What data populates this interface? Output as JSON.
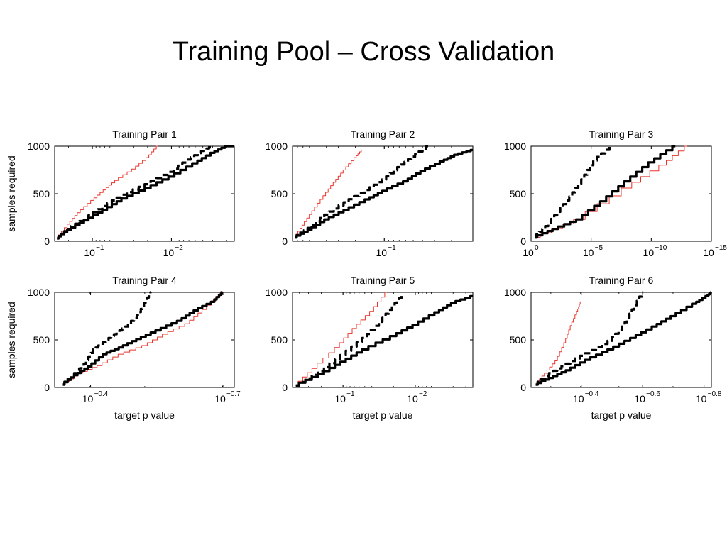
{
  "slide": {
    "title": "Training Pool – Cross Validation"
  },
  "colors": {
    "black_series": "#000000",
    "red_series": "#e8342a",
    "axes": "#000000"
  },
  "chart_data": [
    {
      "type": "line",
      "title": "Training Pair 1",
      "ylabel": "samples required",
      "xlabel": "",
      "x_scale": "log (decreasing p value to the right)",
      "ylim": [
        0,
        1000
      ],
      "yticks": [
        "0",
        "500",
        "1000"
      ],
      "xticks": [
        {
          "base": "10",
          "exp": "−1",
          "value": 0.1
        },
        {
          "base": "10",
          "exp": "−2",
          "value": 0.01
        }
      ],
      "xlim": [
        0.3,
        0.0016
      ],
      "series": [
        {
          "style": "solid-thick",
          "color": "#000000",
          "x": [
            0.28,
            0.2,
            0.12,
            0.07,
            0.04,
            0.02,
            0.01,
            0.005,
            0.003,
            0.002,
            0.0016
          ],
          "y": [
            30,
            120,
            220,
            330,
            450,
            560,
            680,
            820,
            930,
            1000,
            1000
          ]
        },
        {
          "style": "dashed-thick",
          "color": "#000000",
          "x": [
            0.28,
            0.2,
            0.12,
            0.07,
            0.04,
            0.02,
            0.01,
            0.006,
            0.004,
            0.003
          ],
          "y": [
            30,
            130,
            240,
            370,
            490,
            600,
            730,
            860,
            950,
            1000
          ]
        },
        {
          "style": "solid-thin",
          "color": "#e8342a",
          "x": [
            0.28,
            0.2,
            0.15,
            0.1,
            0.07,
            0.05,
            0.03,
            0.02,
            0.015
          ],
          "y": [
            30,
            180,
            300,
            430,
            540,
            640,
            760,
            880,
            1000
          ]
        }
      ]
    },
    {
      "type": "line",
      "title": "Training Pair 2",
      "ylabel": "",
      "xlabel": "",
      "x_scale": "log (decreasing p value to the right)",
      "ylim": [
        0,
        1000
      ],
      "yticks": [
        "0",
        "500",
        "1000"
      ],
      "xticks": [
        {
          "base": "10",
          "exp": "−1",
          "value": 0.1
        }
      ],
      "xlim": [
        0.9,
        0.012
      ],
      "series": [
        {
          "style": "solid-thick",
          "color": "#000000",
          "x": [
            0.85,
            0.6,
            0.4,
            0.25,
            0.15,
            0.1,
            0.06,
            0.04,
            0.025,
            0.018,
            0.012
          ],
          "y": [
            40,
            120,
            230,
            330,
            440,
            530,
            630,
            740,
            840,
            910,
            960
          ]
        },
        {
          "style": "dashed-thick",
          "color": "#000000",
          "x": [
            0.85,
            0.6,
            0.4,
            0.25,
            0.15,
            0.1,
            0.07,
            0.05,
            0.035
          ],
          "y": [
            40,
            140,
            280,
            410,
            540,
            650,
            780,
            890,
            1000
          ]
        },
        {
          "style": "solid-thin",
          "color": "#e8342a",
          "x": [
            0.85,
            0.7,
            0.55,
            0.42,
            0.33,
            0.26,
            0.2,
            0.17
          ],
          "y": [
            40,
            170,
            320,
            480,
            620,
            750,
            880,
            960
          ]
        }
      ]
    },
    {
      "type": "line",
      "title": "Training Pair 3",
      "ylabel": "",
      "xlabel": "",
      "x_scale": "log (decreasing p value to the right)",
      "ylim": [
        0,
        1000
      ],
      "yticks": [
        "0",
        "500",
        "1000"
      ],
      "xticks": [
        {
          "base": "10",
          "exp": "0",
          "value": 1
        },
        {
          "base": "10",
          "exp": "−5",
          "value": 1e-05
        },
        {
          "base": "10",
          "exp": "−10",
          "value": 1e-10
        },
        {
          "base": "10",
          "exp": "−15",
          "value": 1e-15
        }
      ],
      "xlim": [
        1,
        1e-15
      ],
      "series": [
        {
          "style": "solid-thick",
          "color": "#000000",
          "x": [
            0.5,
            0.01,
            0.0001,
            1e-06,
            1e-08,
            1e-10,
            1e-12
          ],
          "y": [
            40,
            130,
            230,
            420,
            630,
            830,
            1000
          ]
        },
        {
          "style": "dashed-thick",
          "color": "#000000",
          "x": [
            0.5,
            0.05,
            0.005,
            0.0005,
            5e-05,
            5e-06,
            2e-07
          ],
          "y": [
            40,
            160,
            310,
            470,
            650,
            850,
            1000
          ]
        },
        {
          "style": "solid-thin",
          "color": "#e8342a",
          "x": [
            0.5,
            0.0001,
            1e-08,
            1e-11,
            1e-13
          ],
          "y": [
            40,
            230,
            560,
            800,
            1000
          ]
        }
      ]
    },
    {
      "type": "line",
      "title": "Training Pair 4",
      "ylabel": "samples required",
      "xlabel": "target p value",
      "x_scale": "log (decreasing p value to the right)",
      "ylim": [
        0,
        1000
      ],
      "yticks": [
        "0",
        "500",
        "1000"
      ],
      "xticks": [
        {
          "base": "10",
          "exp": "−0.4",
          "value": 0.398
        },
        {
          "base": "10",
          "exp": "−0.7",
          "value": 0.1995
        }
      ],
      "xlim": [
        0.48,
        0.188
      ],
      "series": [
        {
          "style": "solid-thick",
          "color": "#000000",
          "x": [
            0.46,
            0.43,
            0.4,
            0.37,
            0.34,
            0.31,
            0.28,
            0.25,
            0.23,
            0.21,
            0.2
          ],
          "y": [
            30,
            130,
            220,
            350,
            420,
            510,
            600,
            700,
            810,
            900,
            1000
          ]
        },
        {
          "style": "dashed-thick",
          "color": "#000000",
          "x": [
            0.46,
            0.43,
            0.41,
            0.39,
            0.37,
            0.35,
            0.33,
            0.31,
            0.3,
            0.29
          ],
          "y": [
            30,
            150,
            250,
            400,
            480,
            560,
            640,
            760,
            890,
            1000
          ]
        },
        {
          "style": "solid-thin",
          "color": "#e8342a",
          "x": [
            0.46,
            0.42,
            0.38,
            0.34,
            0.3,
            0.27,
            0.24,
            0.22,
            0.2
          ],
          "y": [
            30,
            150,
            230,
            350,
            440,
            560,
            670,
            820,
            1000
          ]
        }
      ]
    },
    {
      "type": "line",
      "title": "Training Pair 5",
      "ylabel": "",
      "xlabel": "target p value",
      "x_scale": "log (decreasing p value to the right)",
      "ylim": [
        0,
        1000
      ],
      "yticks": [
        "0",
        "500",
        "1000"
      ],
      "xticks": [
        {
          "base": "10",
          "exp": "−1",
          "value": 0.1
        },
        {
          "base": "10",
          "exp": "−2",
          "value": 0.01
        }
      ],
      "xlim": [
        0.5,
        0.0016
      ],
      "series": [
        {
          "style": "solid-thick",
          "color": "#000000",
          "x": [
            0.45,
            0.2,
            0.1,
            0.05,
            0.02,
            0.01,
            0.005,
            0.003,
            0.0016
          ],
          "y": [
            20,
            140,
            270,
            400,
            540,
            660,
            790,
            890,
            960
          ]
        },
        {
          "style": "dashed-thick",
          "color": "#000000",
          "x": [
            0.45,
            0.2,
            0.1,
            0.05,
            0.03,
            0.02,
            0.015
          ],
          "y": [
            20,
            170,
            340,
            520,
            690,
            860,
            970
          ]
        },
        {
          "style": "solid-thin",
          "color": "#e8342a",
          "x": [
            0.45,
            0.25,
            0.12,
            0.07,
            0.04,
            0.025
          ],
          "y": [
            20,
            200,
            420,
            620,
            800,
            1000
          ]
        }
      ]
    },
    {
      "type": "line",
      "title": "Training Pair 6",
      "ylabel": "",
      "xlabel": "target p value",
      "x_scale": "log (decreasing p value to the right)",
      "ylim": [
        0,
        1000
      ],
      "yticks": [
        "0",
        "500",
        "1000"
      ],
      "xticks": [
        {
          "base": "10",
          "exp": "−0.4",
          "value": 0.398
        },
        {
          "base": "10",
          "exp": "−0.6",
          "value": 0.2512
        },
        {
          "base": "10",
          "exp": "−0.8",
          "value": 0.1585
        }
      ],
      "xlim": [
        0.58,
        0.15
      ],
      "series": [
        {
          "style": "solid-thick",
          "color": "#000000",
          "x": [
            0.56,
            0.5,
            0.44,
            0.38,
            0.32,
            0.27,
            0.23,
            0.2,
            0.17,
            0.155,
            0.15
          ],
          "y": [
            30,
            100,
            180,
            290,
            400,
            520,
            640,
            750,
            880,
            960,
            1000
          ]
        },
        {
          "style": "dashed-thick",
          "color": "#000000",
          "x": [
            0.56,
            0.5,
            0.44,
            0.38,
            0.32,
            0.29,
            0.27,
            0.25
          ],
          "y": [
            30,
            150,
            250,
            360,
            490,
            640,
            820,
            1000
          ]
        },
        {
          "style": "solid-thin",
          "color": "#e8342a",
          "x": [
            0.56,
            0.52,
            0.48,
            0.45,
            0.43,
            0.41,
            0.4
          ],
          "y": [
            30,
            150,
            280,
            470,
            650,
            800,
            900
          ]
        }
      ]
    }
  ]
}
